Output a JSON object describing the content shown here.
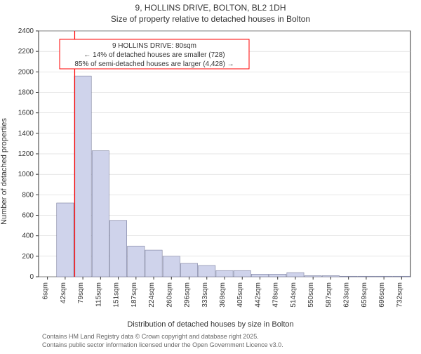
{
  "title": "9, HOLLINS DRIVE, BOLTON, BL2 1DH",
  "subtitle": "Size of property relative to detached houses in Bolton",
  "chart": {
    "type": "histogram",
    "y_label": "Number of detached properties",
    "x_label": "Distribution of detached houses by size in Bolton",
    "ylim": [
      0,
      2400
    ],
    "ytick_step": 200,
    "x_ticks": [
      "6sqm",
      "42sqm",
      "79sqm",
      "115sqm",
      "151sqm",
      "187sqm",
      "224sqm",
      "260sqm",
      "296sqm",
      "333sqm",
      "369sqm",
      "405sqm",
      "442sqm",
      "478sqm",
      "514sqm",
      "550sqm",
      "587sqm",
      "623sqm",
      "659sqm",
      "696sqm",
      "732sqm"
    ],
    "bars": [
      0,
      720,
      1960,
      1230,
      550,
      300,
      260,
      200,
      130,
      110,
      60,
      60,
      25,
      25,
      40,
      10,
      10,
      5,
      5,
      5,
      5
    ],
    "bar_fill": "#cfd3eb",
    "bar_stroke": "#787c9c",
    "grid_color": "#cccccc",
    "background_color": "#ffffff",
    "marker": {
      "x_index": 2,
      "color": "#ff0000"
    },
    "callout": {
      "line1": "9 HOLLINS DRIVE: 80sqm",
      "line2": "← 14% of detached houses are smaller (728)",
      "line3": "85% of semi-detached houses are larger (4,428) →",
      "border_color": "#ff0000"
    }
  },
  "credits": {
    "line1": "Contains HM Land Registry data © Crown copyright and database right 2025.",
    "line2": "Contains public sector information licensed under the Open Government Licence v3.0."
  }
}
